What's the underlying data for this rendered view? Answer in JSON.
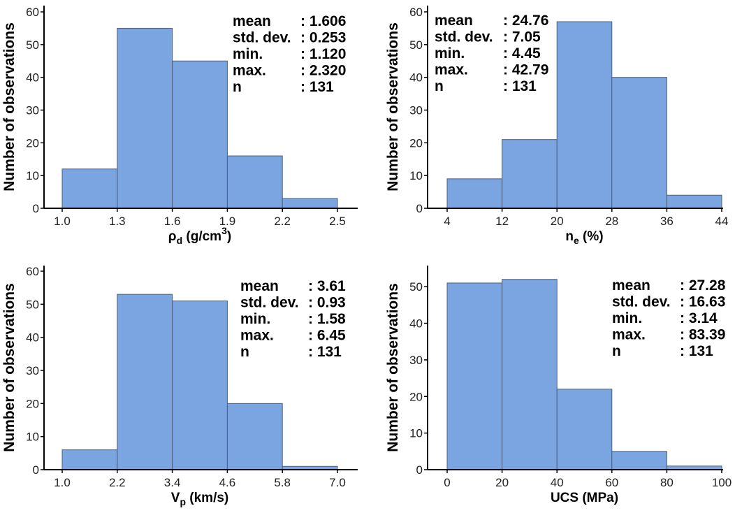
{
  "colors": {
    "bar_fill": "#7ba5e0",
    "bar_stroke": "#4a5f7a",
    "axis": "#000000"
  },
  "chart_data": [
    {
      "type": "bar",
      "title": "",
      "xlabel": "ρd (g/cm³)",
      "xlabel_parts": {
        "base": "ρ",
        "sub": "d",
        "rest": " (g/cm",
        "sup": "3",
        "end": ")"
      },
      "ylabel": "Number of observations",
      "bin_edges": [
        1.0,
        1.3,
        1.6,
        1.9,
        2.2,
        2.5
      ],
      "x_tick_labels": [
        "1.0",
        "1.3",
        "1.6",
        "1.9",
        "2.2",
        "2.5"
      ],
      "values": [
        12,
        55,
        45,
        16,
        3
      ],
      "ylim": [
        0,
        60
      ],
      "y_ticks": [
        0,
        10,
        20,
        30,
        40,
        50,
        60
      ],
      "grid": false,
      "stats": [
        {
          "label": "mean",
          "value": ": 1.606"
        },
        {
          "label": "std. dev.",
          "value": ": 0.253"
        },
        {
          "label": "min.",
          "value": ": 1.120"
        },
        {
          "label": "max.",
          "value": ": 2.320"
        },
        {
          "label": "n",
          "value": ": 131"
        }
      ]
    },
    {
      "type": "bar",
      "title": "",
      "xlabel": "ne (%)",
      "xlabel_parts": {
        "base": "n",
        "sub": "e",
        "rest": " (%)",
        "sup": "",
        "end": ""
      },
      "ylabel": "Number of observations",
      "bin_edges": [
        4,
        12,
        20,
        28,
        36,
        44
      ],
      "x_tick_labels": [
        "4",
        "12",
        "20",
        "28",
        "36",
        "44"
      ],
      "values": [
        9,
        21,
        57,
        40,
        4
      ],
      "ylim": [
        0,
        60
      ],
      "y_ticks": [
        0,
        10,
        20,
        30,
        40,
        50,
        60
      ],
      "grid": false,
      "stats": [
        {
          "label": "mean",
          "value": ": 24.76"
        },
        {
          "label": "std. dev.",
          "value": ": 7.05"
        },
        {
          "label": "min.",
          "value": ": 4.45"
        },
        {
          "label": "max.",
          "value": ": 42.79"
        },
        {
          "label": "n",
          "value": ": 131"
        }
      ]
    },
    {
      "type": "bar",
      "title": "",
      "xlabel": "Vp (km/s)",
      "xlabel_parts": {
        "base": "V",
        "sub": "p",
        "rest": " (km/s)",
        "sup": "",
        "end": ""
      },
      "ylabel": "Number of observations",
      "bin_edges": [
        1.0,
        2.2,
        3.4,
        4.6,
        5.8,
        7.0
      ],
      "x_tick_labels": [
        "1.0",
        "2.2",
        "3.4",
        "4.6",
        "5.8",
        "7.0"
      ],
      "values": [
        6,
        53,
        51,
        20,
        1
      ],
      "ylim": [
        0,
        60
      ],
      "y_ticks": [
        0,
        10,
        20,
        30,
        40,
        50,
        60
      ],
      "grid": false,
      "stats": [
        {
          "label": "mean",
          "value": ": 3.61"
        },
        {
          "label": "std. dev.",
          "value": ": 0.93"
        },
        {
          "label": "min.",
          "value": ": 1.58"
        },
        {
          "label": "max.",
          "value": ": 6.45"
        },
        {
          "label": "n",
          "value": ": 131"
        }
      ]
    },
    {
      "type": "bar",
      "title": "",
      "xlabel": "UCS (MPa)",
      "xlabel_parts": {
        "base": "UCS (MPa)",
        "sub": "",
        "rest": "",
        "sup": "",
        "end": ""
      },
      "ylabel": "Number of observations",
      "bin_edges": [
        0,
        20,
        40,
        60,
        80,
        100
      ],
      "x_tick_labels": [
        "0",
        "20",
        "40",
        "60",
        "80",
        "100"
      ],
      "values": [
        51,
        52,
        22,
        5,
        1
      ],
      "ylim": [
        0,
        55
      ],
      "y_ticks": [
        0,
        10,
        20,
        30,
        40,
        50
      ],
      "grid": false,
      "stats": [
        {
          "label": "mean",
          "value": ": 27.28"
        },
        {
          "label": "std. dev.",
          "value": ": 16.63"
        },
        {
          "label": "min.",
          "value": ": 3.14"
        },
        {
          "label": "max.",
          "value": ": 83.39"
        },
        {
          "label": "n",
          "value": ": 131"
        }
      ]
    }
  ]
}
